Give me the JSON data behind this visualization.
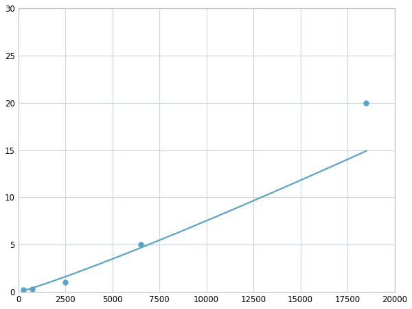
{
  "x_points": [
    250,
    750,
    2500,
    6500,
    18500
  ],
  "y_points": [
    0.2,
    0.3,
    1.0,
    5.0,
    20.0
  ],
  "line_color": "#5ba3c9",
  "marker_color": "#5ba3c9",
  "marker_size": 6,
  "line_width": 1.6,
  "xlim": [
    0,
    20000
  ],
  "ylim": [
    0,
    30
  ],
  "xticks": [
    0,
    2500,
    5000,
    7500,
    10000,
    12500,
    15000,
    17500,
    20000
  ],
  "yticks": [
    0,
    5,
    10,
    15,
    20,
    25,
    30
  ],
  "grid_color": "#c8d4e8",
  "background_color": "#ffffff",
  "spine_color": "#bbbbbb",
  "figsize": [
    6.0,
    4.5
  ],
  "dpi": 100
}
